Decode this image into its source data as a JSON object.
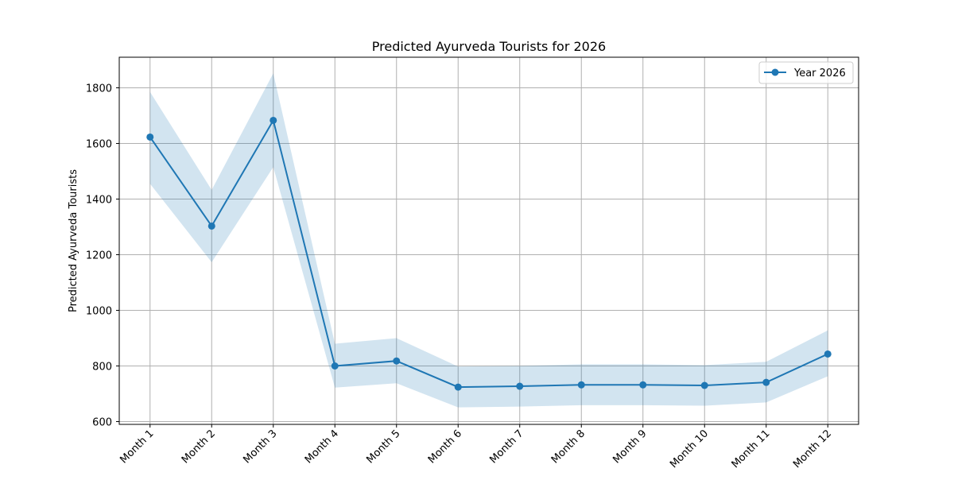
{
  "chart_data": {
    "type": "line",
    "title": "Predicted Ayurveda Tourists for 2026",
    "xlabel": "",
    "ylabel": "Predicted Ayurveda Tourists",
    "categories": [
      "Month 1",
      "Month 2",
      "Month 3",
      "Month 4",
      "Month 5",
      "Month 6",
      "Month 7",
      "Month 8",
      "Month 9",
      "Month 10",
      "Month 11",
      "Month 12"
    ],
    "series": [
      {
        "name": "Year 2026",
        "values": [
          1623,
          1303,
          1683,
          800,
          818,
          724,
          727,
          732,
          732,
          730,
          741,
          843
        ],
        "lower": [
          1455,
          1173,
          1515,
          722,
          738,
          651,
          654,
          659,
          659,
          657,
          669,
          763
        ],
        "upper": [
          1785,
          1433,
          1852,
          880,
          900,
          798,
          800,
          806,
          806,
          803,
          815,
          928
        ]
      }
    ],
    "yticks": [
      600,
      800,
      1000,
      1200,
      1400,
      1600,
      1800
    ],
    "ylim": [
      590,
      1910
    ],
    "grid": true,
    "legend_position": "top-right",
    "colors": {
      "line": "#1f77b4",
      "band": "#1f77b4",
      "grid": "#b0b0b0",
      "axes": "#000000"
    }
  }
}
